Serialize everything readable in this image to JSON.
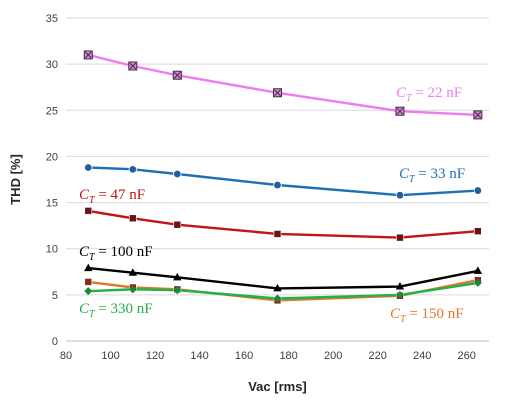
{
  "chart_data": {
    "type": "line",
    "title": "",
    "xlabel": "Vac [rms]",
    "ylabel": "THD [%]",
    "xlim": [
      80,
      270
    ],
    "ylim": [
      0,
      35
    ],
    "xticks": [
      80,
      100,
      120,
      140,
      160,
      180,
      200,
      220,
      240,
      260
    ],
    "yticks": [
      0,
      5,
      10,
      15,
      20,
      25,
      30,
      35
    ],
    "grid": "horizontal",
    "legend": "inline labels",
    "x": [
      90,
      110,
      130,
      175,
      230,
      265
    ],
    "series": [
      {
        "label_prefix": "C",
        "label_sub": "T",
        "label_value": " = 22 nF",
        "color": "#ee7cee",
        "marker": "square-x",
        "marker_color": "#cc66cc",
        "values": [
          31.0,
          29.8,
          28.8,
          26.9,
          24.9,
          24.5
        ]
      },
      {
        "label_prefix": "C",
        "label_sub": "T",
        "label_value": " = 33 nF",
        "color": "#1f6fb5",
        "marker": "circle",
        "marker_color": "#1f5f9f",
        "values": [
          18.8,
          18.6,
          18.1,
          16.9,
          15.8,
          16.3
        ]
      },
      {
        "label_prefix": "C",
        "label_sub": "T",
        "label_value": " = 47 nF",
        "color": "#c0141a",
        "marker": "square",
        "marker_color": "#6b1414",
        "values": [
          14.1,
          13.3,
          12.6,
          11.6,
          11.2,
          11.9
        ]
      },
      {
        "label_prefix": "C",
        "label_sub": "T",
        "label_value": " = 100 nF",
        "color": "#000000",
        "marker": "triangle",
        "marker_color": "#000000",
        "values": [
          7.9,
          7.4,
          6.9,
          5.7,
          5.9,
          7.6
        ]
      },
      {
        "label_prefix": "C",
        "label_sub": "T",
        "label_value": " = 150 nF",
        "color": "#e0792b",
        "marker": "square",
        "marker_color": "#8a2a1a",
        "values": [
          6.4,
          5.8,
          5.6,
          4.4,
          4.9,
          6.6
        ]
      },
      {
        "label_prefix": "C",
        "label_sub": "T",
        "label_value": " = 330 nF",
        "color": "#23b04a",
        "marker": "diamond",
        "marker_color": "#1a8a3a",
        "values": [
          5.4,
          5.6,
          5.5,
          4.6,
          5.0,
          6.3
        ]
      }
    ]
  }
}
